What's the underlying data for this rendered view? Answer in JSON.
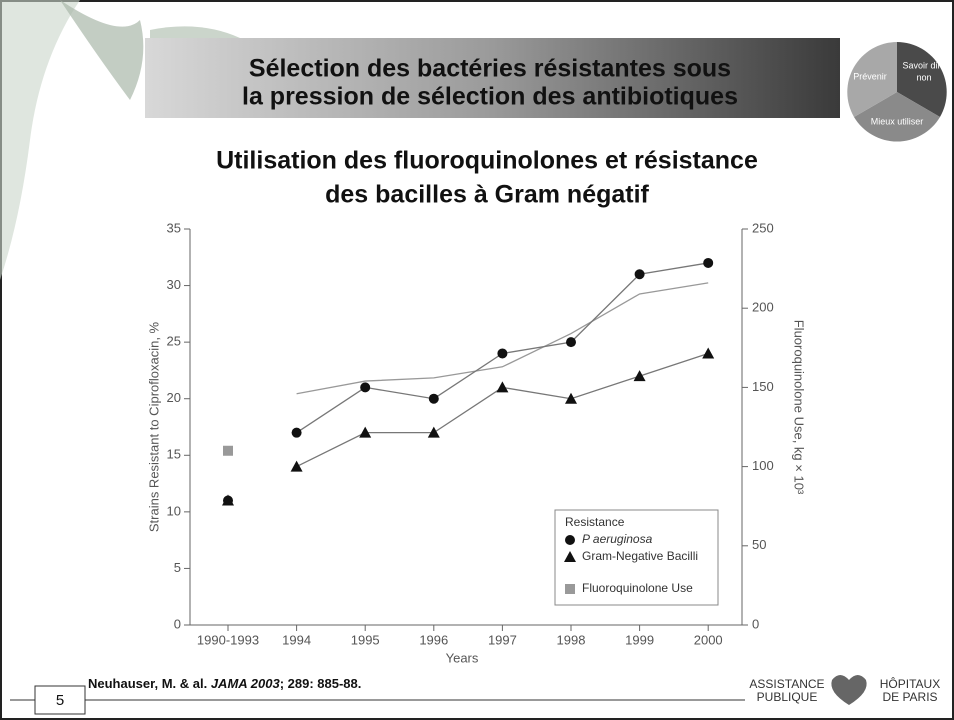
{
  "slide": {
    "title": [
      "Sélection des bactéries résistantes sous",
      "la pression de sélection des antibiotiques"
    ],
    "subtitle": [
      "Utilisation des fluoroquinolones et résistance",
      "des bacilles à Gram négatif"
    ],
    "pie_labels": [
      "Prévenir",
      "Savoir dire",
      "non",
      "Mieux utiliser"
    ],
    "citation": {
      "authors": "Neuhauser, M. & al. ",
      "journal": "JAMA 2003",
      "ref": "; 289: 885-88."
    },
    "page": "5",
    "logo": [
      "ASSISTANCE",
      "PUBLIQUE",
      "HÔPITAUX",
      "DE PARIS"
    ]
  },
  "chart_data": {
    "type": "line",
    "categories": [
      "1990-1993",
      "1994",
      "1995",
      "1996",
      "1997",
      "1998",
      "1999",
      "2000"
    ],
    "x_label": "Years",
    "y_label": "Strains Resistant to Ciprofloxacin, %",
    "y2_label": "Fluoroquinolone Use, kg × 10³",
    "ylim": [
      0,
      35
    ],
    "yticks": [
      0,
      5,
      10,
      15,
      20,
      25,
      30,
      35
    ],
    "y2lim": [
      0,
      250
    ],
    "y2ticks": [
      0,
      50,
      100,
      150,
      200,
      250
    ],
    "legend_title": "Resistance",
    "legend_position": "lower right",
    "series": [
      {
        "name": "P aeruginosa",
        "color": "#111111",
        "marker": "circle",
        "values": [
          11,
          17,
          21,
          20,
          24,
          25,
          31,
          32
        ]
      },
      {
        "name": "Gram-Negative Bacilli",
        "color": "#111111",
        "marker": "triangle",
        "values": [
          11,
          14,
          17,
          17,
          21,
          20,
          22,
          24
        ]
      },
      {
        "name": "Fluoroquinolone Use",
        "color": "#999999",
        "marker": "square",
        "axis": "y2",
        "values": [
          110,
          146,
          154,
          156,
          163,
          184,
          209,
          216
        ]
      }
    ]
  }
}
